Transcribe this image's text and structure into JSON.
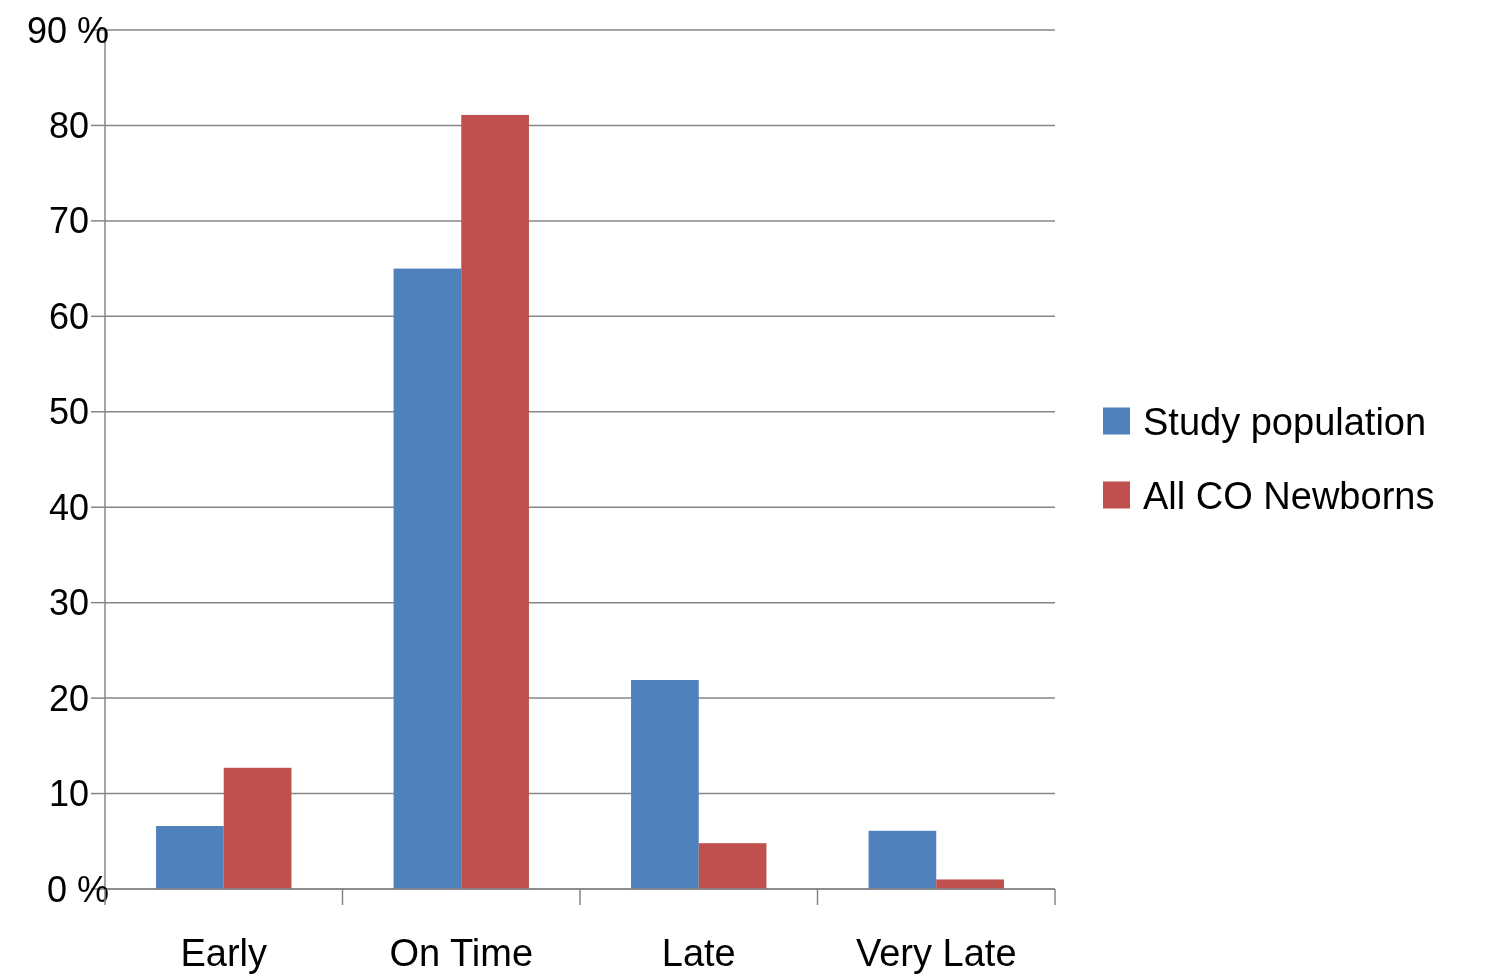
{
  "chart_data": {
    "type": "bar",
    "categories": [
      "Early",
      "On Time",
      "Late",
      "Very Late"
    ],
    "series": [
      {
        "name": "Study population",
        "color": "#4f81bd",
        "values": [
          6.6,
          65,
          21.9,
          6.1
        ]
      },
      {
        "name": "All CO Newborns",
        "color": "#c0504d",
        "values": [
          12.7,
          81.1,
          4.8,
          1
        ]
      }
    ],
    "ylim": [
      0,
      90
    ],
    "yticks": [
      {
        "value": 0,
        "label": "0 %"
      },
      10,
      20,
      30,
      40,
      50,
      60,
      70,
      80,
      {
        "value": 90,
        "label": "90 %"
      }
    ],
    "grid": "y",
    "legend": "right"
  }
}
